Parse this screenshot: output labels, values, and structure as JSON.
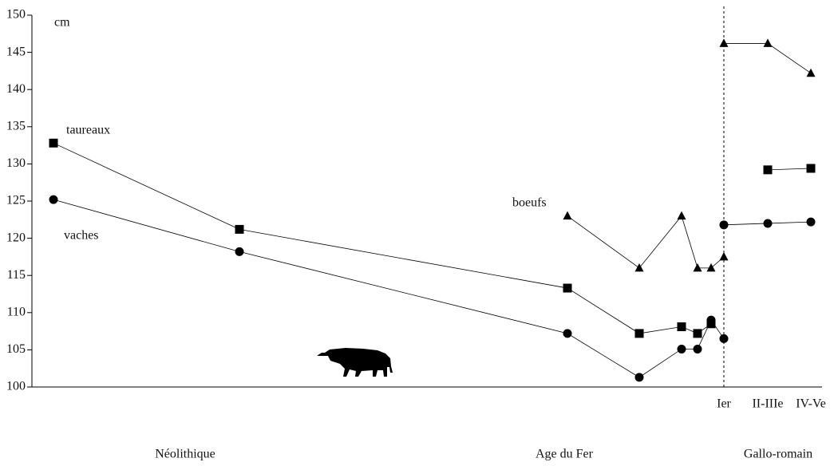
{
  "chart_data": {
    "type": "line",
    "y_label": "cm",
    "categories": [
      null,
      null,
      null,
      null,
      null,
      null,
      null,
      null,
      null,
      "Ier",
      "II-IIIe",
      "IV-Ve"
    ],
    "ylim": [
      100,
      150
    ],
    "yticks": [
      100,
      105,
      110,
      115,
      120,
      125,
      130,
      135,
      140,
      145,
      150
    ],
    "series": [
      {
        "name": "taureaux",
        "color": "#000000",
        "marker": "square",
        "values": [
          132.8,
          121.2,
          113.3,
          107.2,
          108.1,
          107.2,
          108.5,
          null,
          null,
          null,
          129.2,
          129.4
        ]
      },
      {
        "name": "vaches",
        "color": "#000000",
        "marker": "circle",
        "values": [
          125.2,
          118.2,
          107.2,
          101.3,
          105.1,
          105.1,
          109,
          106.5,
          null,
          121.8,
          122,
          122.2
        ]
      },
      {
        "name": "boeufs",
        "color": "#000000",
        "marker": "triangle",
        "values": [
          null,
          null,
          123,
          116,
          123,
          116,
          116,
          117.5,
          null,
          146.2,
          146.2,
          142.2
        ]
      }
    ],
    "periods": [
      "Néolithique",
      "Age du Fer",
      "Gallo-romain"
    ]
  }
}
